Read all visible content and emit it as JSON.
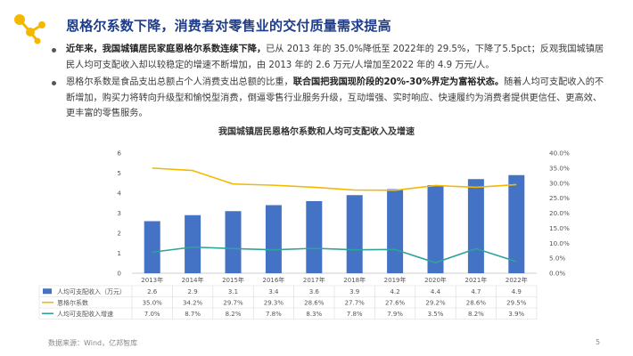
{
  "title": "恩格尔系数下降，消费者对零售业的交付质量需求提高",
  "bullets": [
    {
      "bold": "近年来，我国城镇居民家庭恩格尔系数连续下降，",
      "rest": "已从 2013 年的 35.0%降低至 2022年的 29.5%，下降了5.5pct；反观我国城镇居民人均可支配收入却以较稳定的增速不断增加，由 2013 年的 2.6 万元/人增加至2022 年的 4.9 万元/人。"
    },
    {
      "pre": "恩格尔系数是食品支出总额占个人消费支出总额的比重，",
      "bold": "联合国把我国现阶段的20%-30%界定为富裕状态。",
      "post": "随着人均可支配收入的不断增加，购买力将转向升级型和愉悦型消费，倒逼零售行业服务升级，互动增强、实时响应、快速履约为消费者提供更信任、更高效、更丰富的零售服务。"
    }
  ],
  "chart_title": "我国城镇居民恩格尔系数和人均可支配收入及增速",
  "chart_data": {
    "type": "bar+line",
    "title": "我国城镇居民恩格尔系数和人均可支配收入及增速",
    "categories": [
      "2013年",
      "2014年",
      "2015年",
      "2016年",
      "2017年",
      "2018年",
      "2019年",
      "2020年",
      "2021年",
      "2022年"
    ],
    "left_axis": {
      "ylim": [
        0,
        6
      ],
      "ticks": [
        "0",
        "1",
        "2",
        "3",
        "4",
        "5",
        "6"
      ]
    },
    "right_axis": {
      "ylim": [
        0,
        40
      ],
      "ticks": [
        "0.0%",
        "5.0%",
        "10.0%",
        "15.0%",
        "20.0%",
        "25.0%",
        "30.0%",
        "35.0%",
        "40.0%"
      ]
    },
    "series": [
      {
        "name": "人均可支配收入（万元）",
        "kind": "bar",
        "axis": "left",
        "color": "#4472c4",
        "values": [
          2.6,
          2.9,
          3.1,
          3.4,
          3.6,
          3.9,
          4.2,
          4.4,
          4.7,
          4.9
        ],
        "labels": [
          "2.6",
          "2.9",
          "3.1",
          "3.4",
          "3.6",
          "3.9",
          "4.2",
          "4.4",
          "4.7",
          "4.9"
        ]
      },
      {
        "name": "恩格尔系数",
        "kind": "line",
        "axis": "right",
        "color": "#f5b800",
        "values": [
          35.0,
          34.2,
          29.7,
          29.3,
          28.6,
          27.7,
          27.6,
          29.2,
          28.6,
          29.5
        ],
        "labels": [
          "35.0%",
          "34.2%",
          "29.7%",
          "29.3%",
          "28.6%",
          "27.7%",
          "27.6%",
          "29.2%",
          "28.6%",
          "29.5%"
        ]
      },
      {
        "name": "人均可支配收入增速",
        "kind": "line",
        "axis": "right",
        "color": "#2ea39b",
        "values": [
          7.0,
          8.7,
          8.2,
          7.8,
          8.3,
          7.8,
          7.9,
          3.5,
          8.2,
          3.9
        ],
        "labels": [
          "7.0%",
          "8.7%",
          "8.2%",
          "7.8%",
          "8.3%",
          "7.8%",
          "7.9%",
          "3.5%",
          "8.2%",
          "3.9%"
        ]
      }
    ]
  },
  "source": "数据来源：Wind，亿邦智库",
  "page_number": "5",
  "colors": {
    "title": "#1f3d8a",
    "logo": "#f5b800"
  }
}
